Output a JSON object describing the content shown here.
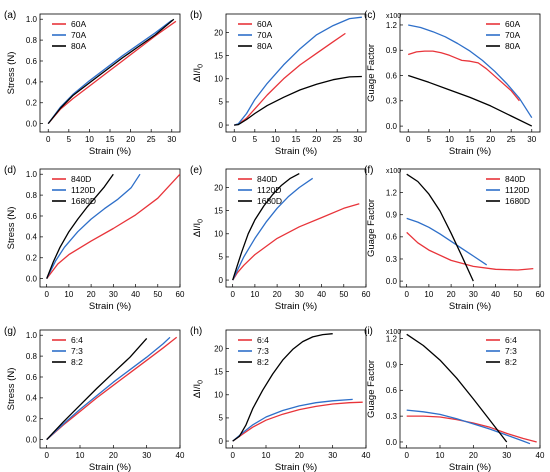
{
  "chart_data": [
    {
      "panel_label": "(a)",
      "type": "line",
      "xlabel": "Strain (%)",
      "ylabel": "Stress (N)",
      "xlim": [
        -2,
        32
      ],
      "ylim": [
        -0.08,
        1.05
      ],
      "xticks": [
        0,
        5,
        10,
        15,
        20,
        25,
        30
      ],
      "yticks": [
        0.0,
        0.2,
        0.4,
        0.6,
        0.8,
        1.0
      ],
      "ytick_format": "1",
      "legend_position": "top-left",
      "series": [
        {
          "name": "60A",
          "color": "#e8343a",
          "x": [
            0,
            3,
            6,
            10,
            14,
            18,
            22,
            26,
            31
          ],
          "y": [
            0,
            0.14,
            0.24,
            0.36,
            0.48,
            0.6,
            0.72,
            0.84,
            0.98
          ]
        },
        {
          "name": "70A",
          "color": "#2e6fc9",
          "x": [
            0,
            3,
            6,
            10,
            14,
            18,
            22,
            26,
            30
          ],
          "y": [
            0,
            0.16,
            0.28,
            0.41,
            0.53,
            0.65,
            0.76,
            0.87,
            0.99
          ]
        },
        {
          "name": "80A",
          "color": "#000000",
          "x": [
            0,
            3,
            6,
            10,
            14,
            18,
            22,
            26,
            30.5
          ],
          "y": [
            0,
            0.15,
            0.27,
            0.39,
            0.51,
            0.63,
            0.74,
            0.85,
            1.0
          ]
        }
      ]
    },
    {
      "panel_label": "(b)",
      "type": "line",
      "xlabel": "Strain (%)",
      "ylabel": "ΔI/I₀",
      "xlim": [
        -2,
        32
      ],
      "ylim": [
        -1.5,
        24
      ],
      "xticks": [
        0,
        5,
        10,
        15,
        20,
        25,
        30
      ],
      "yticks": [
        0,
        5,
        10,
        15,
        20
      ],
      "ytick_format": "0",
      "legend_position": "top-left",
      "series": [
        {
          "name": "60A",
          "color": "#e8343a",
          "x": [
            0,
            1,
            3,
            5,
            8,
            12,
            16,
            20,
            24,
            27
          ],
          "y": [
            0,
            0.2,
            1.5,
            3.5,
            6.5,
            10,
            13,
            15.5,
            18,
            19.8
          ]
        },
        {
          "name": "70A",
          "color": "#2e6fc9",
          "x": [
            0,
            1,
            3,
            5,
            8,
            12,
            16,
            20,
            24,
            28,
            31
          ],
          "y": [
            0,
            0.3,
            2.5,
            5.5,
            9,
            13,
            16.5,
            19.5,
            21.5,
            23,
            23.3
          ]
        },
        {
          "name": "80A",
          "color": "#000000",
          "x": [
            0,
            1,
            3,
            5,
            8,
            12,
            16,
            20,
            24,
            28,
            31
          ],
          "y": [
            0,
            0.1,
            1.2,
            2.5,
            4.2,
            6,
            7.6,
            8.8,
            9.8,
            10.4,
            10.5
          ]
        }
      ]
    },
    {
      "panel_label": "(c)",
      "type": "line",
      "xlabel": "Strain (%)",
      "ylabel": "Guage Factor",
      "multiplier": "x100",
      "xlim": [
        -2,
        32
      ],
      "ylim": [
        -0.07,
        1.33
      ],
      "xticks": [
        0,
        5,
        10,
        15,
        20,
        25,
        30
      ],
      "yticks": [
        0.0,
        0.3,
        0.6,
        0.9,
        1.2
      ],
      "ytick_format": "1",
      "legend_position": "top-right",
      "series": [
        {
          "name": "60A",
          "color": "#e8343a",
          "x": [
            0,
            2,
            4,
            6,
            8,
            10,
            12,
            13,
            15,
            17,
            19,
            22,
            25,
            27
          ],
          "y": [
            0.85,
            0.88,
            0.89,
            0.89,
            0.87,
            0.84,
            0.8,
            0.78,
            0.77,
            0.75,
            0.68,
            0.55,
            0.42,
            0.3
          ]
        },
        {
          "name": "70A",
          "color": "#2e6fc9",
          "x": [
            0,
            3,
            6,
            9,
            12,
            15,
            18,
            21,
            24,
            27,
            30
          ],
          "y": [
            1.2,
            1.17,
            1.12,
            1.06,
            0.98,
            0.89,
            0.78,
            0.65,
            0.5,
            0.33,
            0.1
          ]
        },
        {
          "name": "80A",
          "color": "#000000",
          "x": [
            0,
            5,
            10,
            15,
            20,
            25,
            30
          ],
          "y": [
            0.6,
            0.52,
            0.43,
            0.34,
            0.24,
            0.12,
            0.0
          ]
        }
      ]
    },
    {
      "panel_label": "(d)",
      "type": "line",
      "xlabel": "Strain (%)",
      "ylabel": "Stress (N)",
      "xlim": [
        -3,
        60
      ],
      "ylim": [
        -0.08,
        1.05
      ],
      "xticks": [
        0,
        10,
        20,
        30,
        40,
        50,
        60
      ],
      "yticks": [
        0.0,
        0.2,
        0.4,
        0.6,
        0.8,
        1.0
      ],
      "ytick_format": "1",
      "legend_position": "top-left",
      "series": [
        {
          "name": "840D",
          "color": "#e8343a",
          "x": [
            0,
            5,
            10,
            20,
            30,
            40,
            50,
            60
          ],
          "y": [
            0,
            0.14,
            0.23,
            0.36,
            0.48,
            0.61,
            0.77,
            1.0
          ]
        },
        {
          "name": "1120D",
          "color": "#2e6fc9",
          "x": [
            0,
            4,
            8,
            14,
            20,
            26,
            32,
            38,
            42
          ],
          "y": [
            0,
            0.17,
            0.3,
            0.45,
            0.57,
            0.67,
            0.76,
            0.87,
            1.0
          ]
        },
        {
          "name": "1680D",
          "color": "#000000",
          "x": [
            0,
            3,
            6,
            10,
            14,
            18,
            22,
            26,
            30
          ],
          "y": [
            0,
            0.16,
            0.3,
            0.45,
            0.57,
            0.68,
            0.78,
            0.88,
            1.0
          ]
        }
      ]
    },
    {
      "panel_label": "(e)",
      "type": "line",
      "xlabel": "Strain (%)",
      "ylabel": "ΔI/I₀",
      "xlim": [
        -3,
        60
      ],
      "ylim": [
        -1.5,
        24
      ],
      "xticks": [
        0,
        10,
        20,
        30,
        40,
        50,
        60
      ],
      "yticks": [
        0,
        5,
        10,
        15,
        20
      ],
      "ytick_format": "0",
      "legend_position": "top-left",
      "series": [
        {
          "name": "840D",
          "color": "#e8343a",
          "x": [
            0,
            2,
            5,
            10,
            20,
            30,
            40,
            50,
            57
          ],
          "y": [
            0,
            1.5,
            3.2,
            5.5,
            9,
            11.5,
            13.5,
            15.5,
            16.5
          ]
        },
        {
          "name": "1120D",
          "color": "#2e6fc9",
          "x": [
            0,
            2,
            5,
            10,
            15,
            20,
            25,
            30,
            36
          ],
          "y": [
            0,
            2,
            5,
            9,
            12.5,
            15.5,
            18,
            20,
            22
          ]
        },
        {
          "name": "1680D",
          "color": "#000000",
          "x": [
            0,
            2,
            4,
            7,
            10,
            14,
            18,
            22,
            26,
            30
          ],
          "y": [
            0,
            3,
            6,
            10,
            13,
            16,
            18.5,
            20.5,
            22,
            23
          ]
        }
      ]
    },
    {
      "panel_label": "(f)",
      "type": "line",
      "xlabel": "Strain (%)",
      "ylabel": "Guage Factor",
      "multiplier": "x100",
      "xlim": [
        -3,
        60
      ],
      "ylim": [
        -0.08,
        1.52
      ],
      "xticks": [
        0,
        10,
        20,
        30,
        40,
        50,
        60
      ],
      "yticks": [
        0.0,
        0.3,
        0.6,
        0.9,
        1.2
      ],
      "ytick_format": "1",
      "legend_position": "top-right",
      "series": [
        {
          "name": "840D",
          "color": "#e8343a",
          "x": [
            0,
            5,
            10,
            20,
            30,
            40,
            50,
            57
          ],
          "y": [
            0.66,
            0.52,
            0.42,
            0.28,
            0.2,
            0.16,
            0.15,
            0.17
          ]
        },
        {
          "name": "1120D",
          "color": "#2e6fc9",
          "x": [
            0,
            5,
            10,
            15,
            20,
            25,
            30,
            36
          ],
          "y": [
            0.85,
            0.8,
            0.73,
            0.64,
            0.54,
            0.44,
            0.34,
            0.22
          ]
        },
        {
          "name": "1680D",
          "color": "#000000",
          "x": [
            0,
            5,
            10,
            15,
            20,
            25,
            30
          ],
          "y": [
            1.45,
            1.35,
            1.18,
            0.95,
            0.65,
            0.33,
            0.0
          ]
        }
      ]
    },
    {
      "panel_label": "(g)",
      "type": "line",
      "xlabel": "Strain (%)",
      "ylabel": "Stress (N)",
      "xlim": [
        -2,
        40
      ],
      "ylim": [
        -0.08,
        1.05
      ],
      "xticks": [
        0,
        10,
        20,
        30,
        40
      ],
      "yticks": [
        0.0,
        0.2,
        0.4,
        0.6,
        0.8,
        1.0
      ],
      "ytick_format": "1",
      "legend_position": "top-left",
      "series": [
        {
          "name": "6:4",
          "color": "#e8343a",
          "x": [
            0,
            5,
            10,
            15,
            20,
            25,
            30,
            35,
            39
          ],
          "y": [
            0,
            0.14,
            0.27,
            0.4,
            0.52,
            0.64,
            0.76,
            0.88,
            0.98
          ]
        },
        {
          "name": "7:3",
          "color": "#2e6fc9",
          "x": [
            0,
            5,
            10,
            15,
            20,
            25,
            30,
            35,
            37
          ],
          "y": [
            0,
            0.15,
            0.29,
            0.42,
            0.55,
            0.67,
            0.79,
            0.92,
            0.98
          ]
        },
        {
          "name": "8:2",
          "color": "#000000",
          "x": [
            0,
            5,
            10,
            15,
            20,
            25,
            30
          ],
          "y": [
            0,
            0.17,
            0.33,
            0.49,
            0.64,
            0.79,
            0.97
          ]
        }
      ]
    },
    {
      "panel_label": "(h)",
      "type": "line",
      "xlabel": "Strain (%)",
      "ylabel": "ΔI/I₀",
      "xlim": [
        -2,
        40
      ],
      "ylim": [
        -1.5,
        24
      ],
      "xticks": [
        0,
        10,
        20,
        30,
        40
      ],
      "yticks": [
        0,
        5,
        10,
        15,
        20
      ],
      "ytick_format": "0",
      "legend_position": "top-left",
      "series": [
        {
          "name": "6:4",
          "color": "#e8343a",
          "x": [
            0,
            3,
            6,
            10,
            15,
            20,
            25,
            30,
            35,
            39
          ],
          "y": [
            0,
            1.5,
            3,
            4.5,
            5.8,
            6.8,
            7.5,
            8,
            8.3,
            8.4
          ]
        },
        {
          "name": "7:3",
          "color": "#2e6fc9",
          "x": [
            0,
            3,
            6,
            10,
            15,
            20,
            25,
            30,
            36
          ],
          "y": [
            0,
            1.8,
            3.5,
            5.2,
            6.6,
            7.6,
            8.3,
            8.7,
            9
          ]
        },
        {
          "name": "8:2",
          "color": "#000000",
          "x": [
            0,
            2,
            4,
            6,
            9,
            12,
            15,
            18,
            21,
            24,
            27,
            30
          ],
          "y": [
            0,
            1,
            3.5,
            7,
            11,
            14.5,
            17.5,
            19.8,
            21.5,
            22.5,
            23,
            23.2
          ]
        }
      ]
    },
    {
      "panel_label": "(i)",
      "type": "line",
      "xlabel": "Strain (%)",
      "ylabel": "Guage Factor",
      "multiplier": "x100",
      "xlim": [
        -2,
        40
      ],
      "ylim": [
        -0.07,
        1.3
      ],
      "xticks": [
        0,
        10,
        20,
        30,
        40
      ],
      "yticks": [
        0.0,
        0.3,
        0.6,
        0.9,
        1.2
      ],
      "ytick_format": "1",
      "legend_position": "top-right",
      "series": [
        {
          "name": "6:4",
          "color": "#e8343a",
          "x": [
            0,
            5,
            10,
            15,
            20,
            25,
            30,
            35,
            39
          ],
          "y": [
            0.3,
            0.3,
            0.29,
            0.26,
            0.22,
            0.17,
            0.1,
            0.04,
            0.0
          ]
        },
        {
          "name": "7:3",
          "color": "#2e6fc9",
          "x": [
            0,
            5,
            10,
            15,
            20,
            25,
            30,
            35,
            37
          ],
          "y": [
            0.37,
            0.35,
            0.32,
            0.27,
            0.21,
            0.15,
            0.08,
            0.01,
            -0.02
          ]
        },
        {
          "name": "8:2",
          "color": "#000000",
          "x": [
            0,
            5,
            10,
            15,
            20,
            25,
            30
          ],
          "y": [
            1.25,
            1.12,
            0.95,
            0.74,
            0.5,
            0.25,
            0.0
          ]
        }
      ]
    }
  ]
}
